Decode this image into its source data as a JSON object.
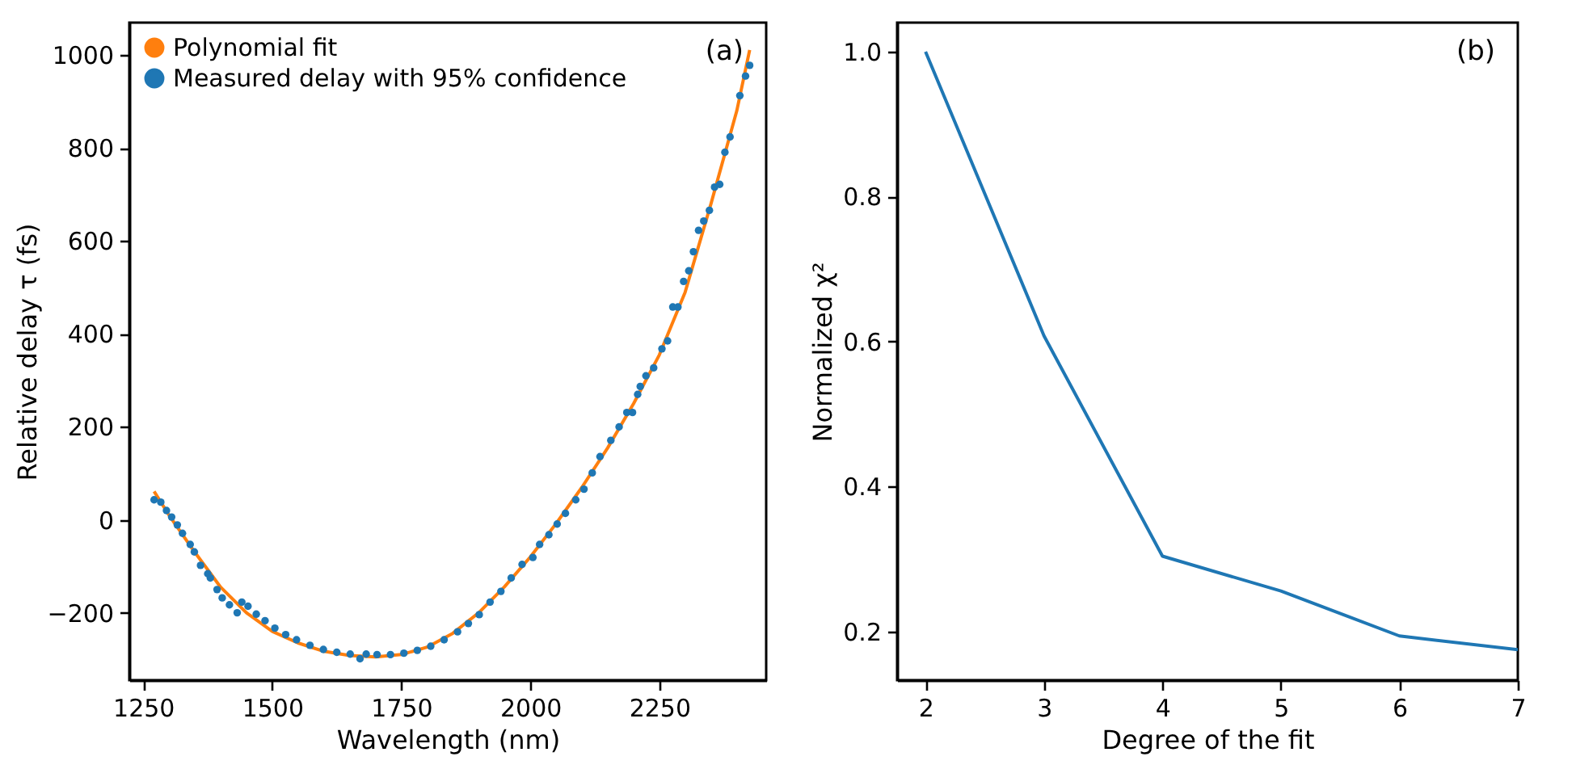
{
  "chart_data": [
    {
      "type": "scatter",
      "xlabel": "Wavelength (nm)",
      "ylabel": "Relative delay τ (fs)",
      "annotations": [
        "(a)"
      ],
      "legend": "top left",
      "xlim": [
        1223,
        2457
      ],
      "xticks": [
        1250,
        1500,
        1750,
        2000,
        2250
      ],
      "ylim": [
        -345,
        1070
      ],
      "yticks": [
        {
          "value": -200,
          "label": "−200"
        },
        0,
        200,
        400,
        600,
        800,
        1000
      ],
      "series": [
        {
          "name": "Polynomial fit",
          "type": "line",
          "color": "#ff7f0e",
          "x": [
            1271,
            1300,
            1350,
            1400,
            1450,
            1500,
            1550,
            1600,
            1650,
            1700,
            1750,
            1800,
            1850,
            1900,
            1950,
            2000,
            2050,
            2100,
            2150,
            2200,
            2250,
            2300,
            2350,
            2400,
            2425
          ],
          "values": [
            61,
            10,
            -70,
            -145,
            -200,
            -240,
            -265,
            -283,
            -292,
            -295,
            -290,
            -274,
            -244,
            -200,
            -144,
            -80,
            -8,
            70,
            155,
            250,
            355,
            490,
            680,
            880,
            1011
          ]
        },
        {
          "name": "Measured delay with 95% confidence",
          "type": "scatter",
          "marker": "circle",
          "color": "#1f77b4",
          "x": [
            1271,
            1284,
            1295,
            1305,
            1316,
            1326,
            1341,
            1349,
            1361,
            1375,
            1380,
            1393,
            1403,
            1417,
            1432,
            1441,
            1453,
            1469,
            1486,
            1505,
            1526,
            1547,
            1573,
            1599,
            1625,
            1651,
            1670,
            1682,
            1703,
            1729,
            1755,
            1781,
            1807,
            1833,
            1859,
            1880,
            1901,
            1922,
            1943,
            1963,
            1984,
            2005,
            2018,
            2036,
            2052,
            2068,
            2088,
            2104,
            2120,
            2135,
            2156,
            2172,
            2187,
            2198,
            2208,
            2213,
            2224,
            2239,
            2255,
            2266,
            2276,
            2286,
            2297,
            2307,
            2316,
            2326,
            2336,
            2347,
            2357,
            2367,
            2377,
            2387,
            2406,
            2417,
            2425
          ],
          "values": [
            43,
            38,
            20,
            6,
            -11,
            -29,
            -53,
            -69,
            -98,
            -116,
            -125,
            -150,
            -168,
            -183,
            -200,
            -177,
            -186,
            -203,
            -217,
            -233,
            -247,
            -258,
            -270,
            -279,
            -285,
            -289,
            -299,
            -289,
            -290,
            -290,
            -287,
            -281,
            -272,
            -258,
            -241,
            -223,
            -204,
            -177,
            -154,
            -125,
            -96,
            -81,
            -53,
            -32,
            -9,
            14,
            43,
            66,
            101,
            136,
            171,
            200,
            231,
            231,
            270,
            287,
            310,
            327,
            368,
            385,
            458,
            458,
            513,
            536,
            577,
            623,
            643,
            666,
            716,
            722,
            791,
            824,
            913,
            955,
            978
          ]
        }
      ]
    },
    {
      "type": "line",
      "xlabel": "Degree of the fit",
      "ylabel": "Normalized χ²",
      "annotations": [
        "(b)"
      ],
      "xlim": [
        1.76,
        7
      ],
      "xticks": [
        2,
        3,
        4,
        5,
        6,
        7
      ],
      "ylim": [
        0.133,
        1.04
      ],
      "yticks": [
        0.2,
        0.4,
        0.6,
        0.8,
        {
          "value": 1,
          "label": "1.0"
        }
      ],
      "color": "#1f77b4",
      "x": [
        2,
        3,
        4,
        5,
        6,
        7
      ],
      "values": [
        1.0,
        0.608,
        0.304,
        0.256,
        0.194,
        0.175
      ]
    }
  ]
}
